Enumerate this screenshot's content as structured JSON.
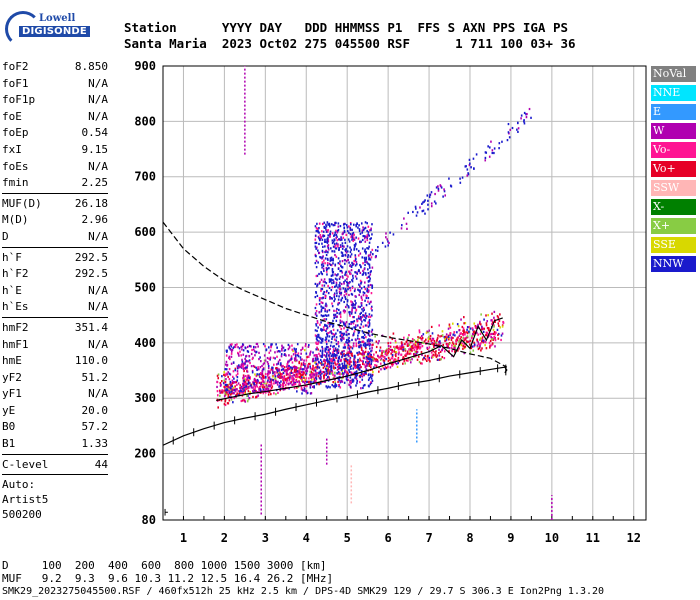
{
  "logo": {
    "line1": "Lowell",
    "line2": "DIGISONDE"
  },
  "header": {
    "line1": "Station      YYYY DAY   DDD HHMMSS P1  FFS S AXN PPS IGA PS",
    "line2": "Santa Maria  2023 Oct02 275 045500 RSF      1 711 100 03+ 36"
  },
  "params": [
    {
      "label": "foF2",
      "value": "8.850"
    },
    {
      "label": "foF1",
      "value": "N/A"
    },
    {
      "label": "foF1p",
      "value": "N/A"
    },
    {
      "label": "foE",
      "value": "N/A"
    },
    {
      "label": "foEp",
      "value": "0.54"
    },
    {
      "label": "fxI",
      "value": "9.15"
    },
    {
      "label": "foEs",
      "value": "N/A"
    },
    {
      "label": "fmin",
      "value": "2.25"
    },
    {
      "label": "MUF(D)",
      "value": "26.18"
    },
    {
      "label": "M(D)",
      "value": "2.96"
    },
    {
      "label": "D",
      "value": "N/A"
    },
    {
      "label": "h`F",
      "value": "292.5"
    },
    {
      "label": "h`F2",
      "value": "292.5"
    },
    {
      "label": "h`E",
      "value": "N/A"
    },
    {
      "label": "h`Es",
      "value": "N/A"
    },
    {
      "label": "hmF2",
      "value": "351.4"
    },
    {
      "label": "hmF1",
      "value": "N/A"
    },
    {
      "label": "hmE",
      "value": "110.0"
    },
    {
      "label": "yF2",
      "value": "51.2"
    },
    {
      "label": "yF1",
      "value": "N/A"
    },
    {
      "label": "yE",
      "value": "20.0"
    },
    {
      "label": "B0",
      "value": "57.2"
    },
    {
      "label": "B1",
      "value": "1.33"
    },
    {
      "label": "C-level",
      "value": "44"
    }
  ],
  "auto": {
    "line1": "Auto:",
    "line2": "Artist5",
    "line3": "500200"
  },
  "legend": [
    {
      "label": "NoVal",
      "color": "#808080"
    },
    {
      "label": "NNE",
      "color": "#00e5ff"
    },
    {
      "label": "E",
      "color": "#3399ff"
    },
    {
      "label": "W",
      "color": "#b000b0"
    },
    {
      "label": "Vo-",
      "color": "#ff1493"
    },
    {
      "label": "Vo+",
      "color": "#e60026"
    },
    {
      "label": "SSW",
      "color": "#ffb6b6"
    },
    {
      "label": "X-",
      "color": "#008000"
    },
    {
      "label": "X+",
      "color": "#88cc44"
    },
    {
      "label": "SSE",
      "color": "#d8d800"
    },
    {
      "label": "NNW",
      "color": "#1a1acc"
    }
  ],
  "bottom": {
    "line1": "D     100  200  400  600  800 1000 1500 3000 [km]",
    "line2": "MUF   9.2  9.3  9.6 10.3 11.2 12.5 16.4 26.2 [MHz]",
    "line3": "SMK29_2023275045500.RSF / 460fx512h 25 kHz 2.5 km / DPS-4D SMK29 129 / 29.7 S 306.3 E Ion2Png 1.3.20"
  },
  "chart_data": {
    "type": "scatter",
    "xlabel": "",
    "ylabel": "",
    "xlim": [
      0.5,
      12.3
    ],
    "ylim": [
      80,
      900
    ],
    "x_ticks": [
      "1",
      "2",
      "3",
      "4",
      "5",
      "6",
      "7",
      "8",
      "9",
      "10",
      "11",
      "12"
    ],
    "y_ticks": [
      "80",
      "200",
      "300",
      "400",
      "500",
      "600",
      "700",
      "800",
      "900"
    ],
    "grid": true,
    "series": [
      {
        "name": "foF2 trace",
        "style": "solid",
        "x": [
          1.8,
          2.2,
          2.6,
          3.0,
          3.5,
          4.0,
          4.5,
          5.0,
          5.5,
          6.0,
          6.5,
          7.0,
          7.3,
          7.6,
          7.8,
          8.0,
          8.2,
          8.4,
          8.6,
          8.8
        ],
        "y": [
          296,
          302,
          308,
          312,
          318,
          324,
          332,
          340,
          350,
          362,
          373,
          384,
          395,
          375,
          405,
          390,
          430,
          405,
          440,
          445
        ]
      },
      {
        "name": "fit profile",
        "style": "ticked",
        "x": [
          0.5,
          1.0,
          1.5,
          2.0,
          2.5,
          3.0,
          3.5,
          4.0,
          4.5,
          5.0,
          5.5,
          6.0,
          6.5,
          7.0,
          7.5,
          8.0,
          8.5,
          8.85,
          8.9,
          8.85
        ],
        "y": [
          215,
          232,
          245,
          256,
          264,
          271,
          280,
          288,
          296,
          303,
          311,
          318,
          326,
          332,
          340,
          346,
          352,
          356,
          351,
          346
        ]
      },
      {
        "name": "extrapolated profile",
        "style": "dashed",
        "x": [
          0.5,
          1.0,
          1.5,
          2.0,
          2.5,
          3.0,
          3.5,
          4.0,
          4.5,
          5.0,
          5.5,
          6.0,
          6.5,
          7.0,
          7.5,
          8.0,
          8.5,
          8.9
        ],
        "y": [
          618,
          570,
          538,
          512,
          494,
          478,
          462,
          450,
          438,
          428,
          418,
          410,
          404,
          398,
          390,
          380,
          372,
          356
        ]
      }
    ]
  }
}
